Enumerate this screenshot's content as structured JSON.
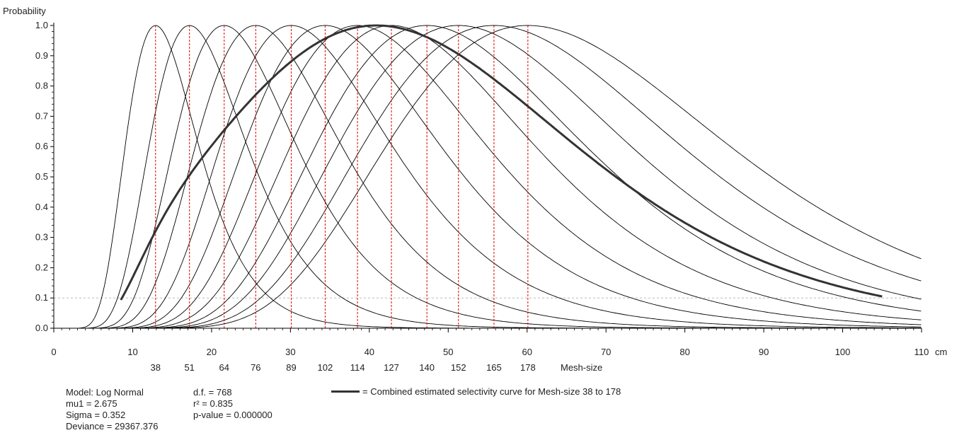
{
  "chart_data": {
    "type": "line",
    "ylabel": "Probability",
    "xunit": "cm",
    "secondary_axis_label": "Mesh-size",
    "xlim": [
      0,
      110
    ],
    "ylim": [
      0,
      1.0
    ],
    "xticks": [
      0,
      10,
      20,
      30,
      40,
      50,
      60,
      70,
      80,
      90,
      100,
      110
    ],
    "yticks": [
      0.0,
      0.1,
      0.2,
      0.3,
      0.4,
      0.5,
      0.6,
      0.7,
      0.8,
      0.9,
      1.0
    ],
    "ytick_labels": [
      "0.0",
      "0.1",
      "0.2",
      "0.3",
      "0.4",
      "0.5",
      "0.6",
      "0.7",
      "0.8",
      "0.9",
      "1.0"
    ],
    "model": "log-normal",
    "mu1": 2.675,
    "sigma": 0.352,
    "mesh_sizes": [
      {
        "label": "38",
        "mode_cm": 12.9
      },
      {
        "label": "51",
        "mode_cm": 17.2
      },
      {
        "label": "64",
        "mode_cm": 21.6
      },
      {
        "label": "76",
        "mode_cm": 25.6
      },
      {
        "label": "89",
        "mode_cm": 30.1
      },
      {
        "label": "102",
        "mode_cm": 34.4
      },
      {
        "label": "114",
        "mode_cm": 38.5
      },
      {
        "label": "127",
        "mode_cm": 42.8
      },
      {
        "label": "140",
        "mode_cm": 47.3
      },
      {
        "label": "152",
        "mode_cm": 51.3
      },
      {
        "label": "165",
        "mode_cm": 55.8
      },
      {
        "label": "178",
        "mode_cm": 60.1
      }
    ],
    "combined_curve": {
      "x_range": [
        8.5,
        105
      ],
      "color": "#333333"
    },
    "reference_line_y": 0.1,
    "colors": {
      "curves": "#000000",
      "combined": "#333333",
      "mode_lines": "#e00000",
      "reference": "#bbbbbb",
      "axis": "#000000"
    }
  },
  "stats": {
    "model": "Model: Log Normal",
    "mu1": "mu1 =  2.675",
    "sigma": "Sigma =  0.352",
    "deviance": "Deviance = 29367.376",
    "df": "d.f. = 768",
    "r2": "r² = 0.835",
    "pvalue": "p-value = 0.000000"
  },
  "legend": {
    "text": "= Combined estimated selectivity curve for Mesh-size 38 to 178"
  }
}
